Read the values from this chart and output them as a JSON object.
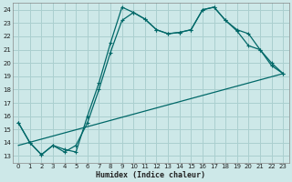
{
  "xlabel": "Humidex (Indice chaleur)",
  "bg_color": "#cde8e8",
  "grid_color": "#aacfcf",
  "line_color": "#006868",
  "xlim": [
    -0.5,
    23.5
  ],
  "ylim": [
    12.5,
    24.5
  ],
  "xtick_labels": [
    "0",
    "1",
    "2",
    "3",
    "4",
    "5",
    "6",
    "7",
    "8",
    "9",
    "10",
    "11",
    "12",
    "13",
    "14",
    "15",
    "16",
    "17",
    "18",
    "19",
    "20",
    "21",
    "22",
    "23"
  ],
  "ytick_labels": [
    "13",
    "14",
    "15",
    "16",
    "17",
    "18",
    "19",
    "20",
    "21",
    "22",
    "23",
    "24"
  ],
  "line1_x": [
    0,
    1,
    2,
    3,
    4,
    5,
    6,
    7,
    8,
    9,
    10,
    11,
    12,
    13,
    14,
    15,
    16,
    17,
    18,
    19,
    20,
    21,
    22,
    23
  ],
  "line1_y": [
    15.5,
    14.0,
    13.1,
    13.8,
    13.5,
    13.3,
    16.0,
    18.5,
    21.5,
    24.2,
    23.8,
    23.3,
    22.5,
    22.2,
    22.3,
    22.5,
    24.0,
    24.2,
    23.2,
    22.4,
    21.3,
    21.0,
    19.8,
    19.2
  ],
  "line2_x": [
    0,
    1,
    2,
    3,
    4,
    5,
    6,
    7,
    8,
    9,
    10,
    11,
    12,
    13,
    14,
    15,
    16,
    17,
    18,
    19,
    20,
    21,
    22,
    23
  ],
  "line2_y": [
    15.5,
    14.0,
    13.1,
    13.8,
    13.3,
    13.8,
    15.5,
    18.0,
    20.8,
    23.2,
    23.8,
    23.3,
    22.5,
    22.2,
    22.3,
    22.5,
    24.0,
    24.2,
    23.2,
    22.5,
    22.2,
    21.0,
    20.0,
    19.2
  ],
  "line3_x": [
    0,
    23
  ],
  "line3_y": [
    13.8,
    19.2
  ]
}
